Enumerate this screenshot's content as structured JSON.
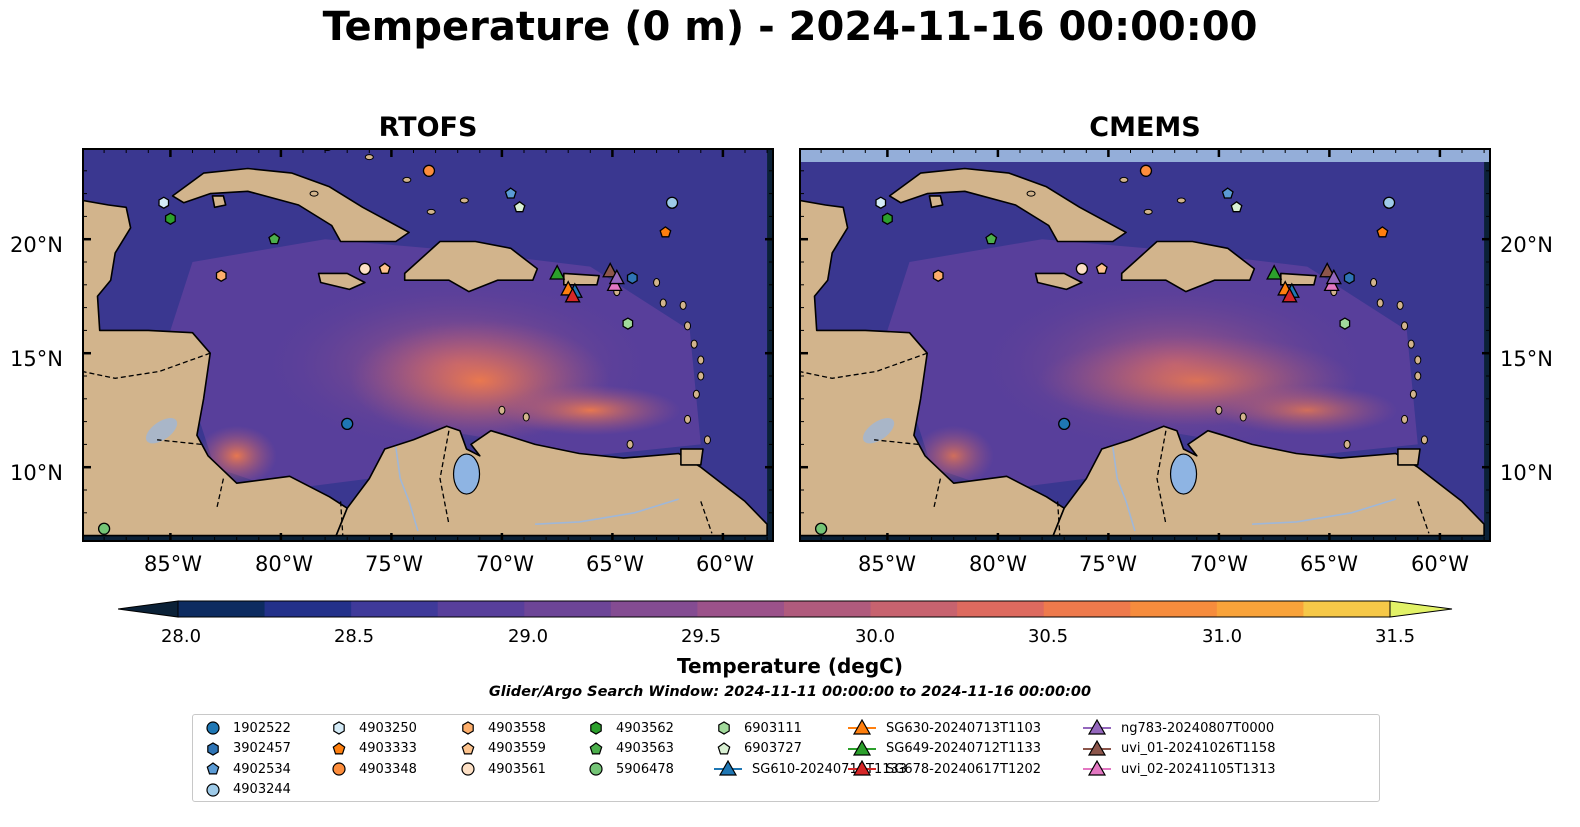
{
  "title": "Temperature (0 m) - 2024-11-16 00:00:00",
  "panels": [
    {
      "title": "RTOFS"
    },
    {
      "title": "CMEMS"
    }
  ],
  "lon_ticks": [
    "85°W",
    "80°W",
    "75°W",
    "70°W",
    "65°W",
    "60°W"
  ],
  "lat_ticks": [
    "20°N",
    "15°N",
    "10°N"
  ],
  "colorbar": {
    "title": "Temperature (degC)",
    "tick_labels": [
      "28.0",
      "28.5",
      "29.0",
      "29.5",
      "30.0",
      "30.5",
      "31.0",
      "31.5"
    ],
    "colors": [
      "#0b2137",
      "#0d2b60",
      "#23318a",
      "#3f3a9a",
      "#583f9b",
      "#6d4597",
      "#844c92",
      "#9b528a",
      "#b05b7d",
      "#c7636f",
      "#dd6a5f",
      "#ee7a4c",
      "#f68c3d",
      "#f9a33a",
      "#f6c848",
      "#e2f267"
    ]
  },
  "search_window": "Glider/Argo Search Window: 2024-11-11 00:00:00 to 2024-11-16 00:00:00",
  "legend": [
    {
      "label": "1902522",
      "marker": "circle",
      "color": "#1f77b4"
    },
    {
      "label": "3902457",
      "marker": "hexagon",
      "color": "#2f74b5"
    },
    {
      "label": "4902534",
      "marker": "pentagon",
      "color": "#5b9bd5"
    },
    {
      "label": "4903244",
      "marker": "circle",
      "color": "#9ecae8"
    },
    {
      "label": "4903250",
      "marker": "hexagon",
      "color": "#d4ebf7"
    },
    {
      "label": "4903333",
      "marker": "pentagon",
      "color": "#ff7f0e"
    },
    {
      "label": "4903348",
      "marker": "circle",
      "color": "#fd8d3c"
    },
    {
      "label": "4903558",
      "marker": "hexagon",
      "color": "#fdae6b"
    },
    {
      "label": "4903559",
      "marker": "pentagon",
      "color": "#fdc38d"
    },
    {
      "label": "4903561",
      "marker": "circle",
      "color": "#fde0c5"
    },
    {
      "label": "4903562",
      "marker": "hexagon",
      "color": "#2ca02c"
    },
    {
      "label": "4903563",
      "marker": "pentagon",
      "color": "#4caf4c"
    },
    {
      "label": "5906478",
      "marker": "circle",
      "color": "#74c476"
    },
    {
      "label": "6903111",
      "marker": "hexagon",
      "color": "#a1d99b"
    },
    {
      "label": "6903727",
      "marker": "pentagon",
      "color": "#d9f0d3"
    },
    {
      "label": "SG610-20240711T1133",
      "marker": "triangle-line",
      "color": "#1f77b4"
    },
    {
      "label": "SG630-20240713T1103",
      "marker": "triangle-line",
      "color": "#ff7f0e"
    },
    {
      "label": "SG649-20240712T1133",
      "marker": "triangle-line",
      "color": "#2ca02c"
    },
    {
      "label": "SG678-20240617T1202",
      "marker": "triangle-line",
      "color": "#d62728"
    },
    {
      "label": "ng783-20240807T0000",
      "marker": "triangle-line",
      "color": "#9467bd"
    },
    {
      "label": "uvi_01-20241026T1158",
      "marker": "triangle-line",
      "color": "#8c564b"
    },
    {
      "label": "uvi_02-20241105T1313",
      "marker": "triangle-line",
      "color": "#e377c2"
    }
  ],
  "map_colors": {
    "land": "#d2b48c",
    "lake": "#8eb4e3",
    "deep_water": "#0b2137",
    "mid_water": "#583f9b",
    "warm_water": "#b05b7d",
    "hot_water": "#ee7a4c",
    "no_data_band": "#94aed9"
  }
}
